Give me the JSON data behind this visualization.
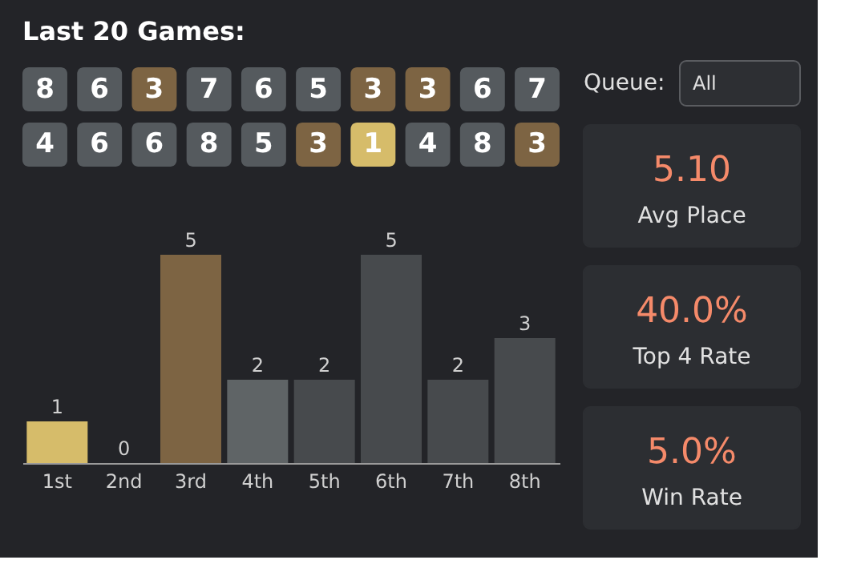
{
  "chart_data": [
    {
      "type": "heatmap",
      "title": "Last 20 Games:",
      "categories": [
        null,
        null,
        null,
        null,
        null,
        null,
        null,
        null,
        null,
        null
      ],
      "y_categories": [
        null,
        null
      ],
      "cells": [
        [
          8,
          6,
          3,
          7,
          6,
          5,
          3,
          3,
          6,
          7
        ],
        [
          4,
          6,
          6,
          8,
          5,
          3,
          1,
          4,
          8,
          3
        ]
      ],
      "colors": [
        [
          "#555a5e",
          "#555a5e",
          "#7d6443",
          "#555a5e",
          "#555a5e",
          "#555a5e",
          "#7d6443",
          "#7d6443",
          "#555a5e",
          "#555a5e"
        ],
        [
          "#555a5e",
          "#555a5e",
          "#555a5e",
          "#555a5e",
          "#555a5e",
          "#7d6443",
          "#d6bc6a",
          "#555a5e",
          "#555a5e",
          "#7d6443"
        ]
      ],
      "data_labels": true
    },
    {
      "type": "bar",
      "categories": [
        "1st",
        "2nd",
        "3rd",
        "4th",
        "5th",
        "6th",
        "7th",
        "8th"
      ],
      "values": [
        1,
        0,
        5,
        2,
        2,
        5,
        2,
        3
      ],
      "colors": [
        "#d6bc6a",
        "#5f6466",
        "#7d6443",
        "#5f6466",
        "#474a4d",
        "#474a4d",
        "#474a4d",
        "#474a4d"
      ],
      "data_labels": true,
      "tick_labels": "x"
    },
    {
      "type": "other",
      "annotations": [
        "Queue:",
        "All",
        "5.10",
        "Avg Place",
        "40.0%",
        "Top 4 Rate",
        "5.0%",
        "Win Rate"
      ]
    }
  ]
}
